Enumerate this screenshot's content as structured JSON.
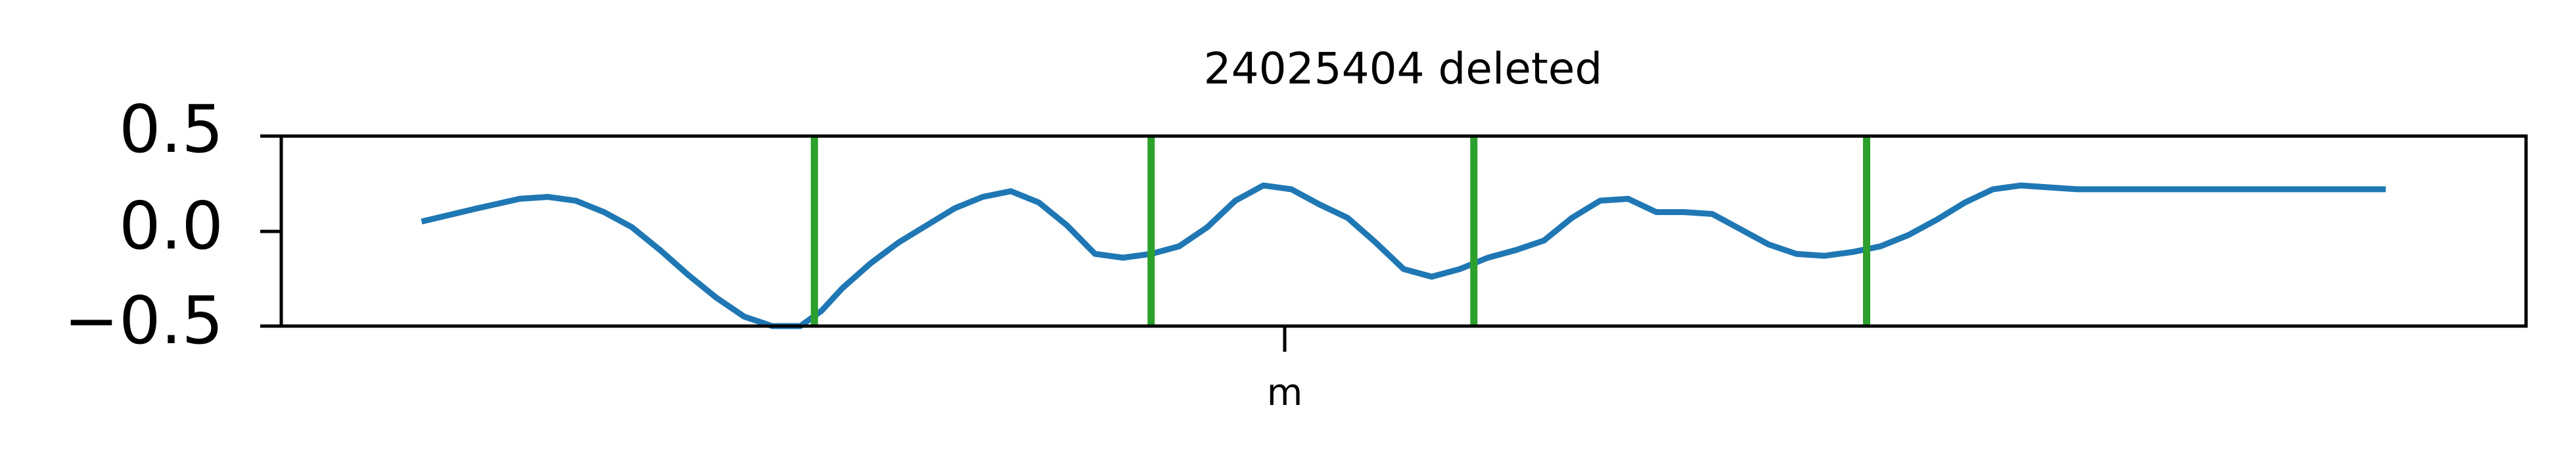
{
  "chart_data": {
    "type": "line",
    "title": "24025404 deleted",
    "xlabel": "",
    "ylabel": "",
    "ylim": [
      -0.5,
      0.5
    ],
    "grid": false,
    "x_tick_labels": [
      "m"
    ],
    "y_tick_labels": [
      "0.5",
      "0.0",
      "−0.5"
    ],
    "y_ticks": [
      0.5,
      0.0,
      -0.5
    ],
    "series": [
      {
        "color": "#1f77b4",
        "x": [
          0.1,
          0.14,
          0.17,
          0.19,
          0.21,
          0.23,
          0.25,
          0.27,
          0.29,
          0.31,
          0.33,
          0.35,
          0.37,
          0.385,
          0.4,
          0.42,
          0.44,
          0.46,
          0.48,
          0.5,
          0.52,
          0.54,
          0.56,
          0.58,
          0.6,
          0.62,
          0.64,
          0.66,
          0.68,
          0.7,
          0.72,
          0.74,
          0.76,
          0.78,
          0.8,
          0.82,
          0.84,
          0.86,
          0.88,
          0.9,
          0.92,
          0.94,
          0.96,
          0.98,
          1.0,
          1.02,
          1.04,
          1.06,
          1.08,
          1.1,
          1.12,
          1.14,
          1.16,
          1.18,
          1.2,
          1.22,
          1.24,
          1.26,
          1.28,
          1.3,
          1.32,
          1.34,
          1.36,
          1.38,
          1.4,
          1.42,
          1.44,
          1.46,
          1.48,
          1.5
        ],
        "y": [
          0.05,
          0.12,
          0.17,
          0.18,
          0.16,
          0.1,
          0.02,
          -0.1,
          -0.23,
          -0.35,
          -0.45,
          -0.5,
          -0.5,
          -0.42,
          -0.3,
          -0.17,
          -0.06,
          0.03,
          0.12,
          0.18,
          0.21,
          0.15,
          0.03,
          -0.12,
          -0.14,
          -0.12,
          -0.08,
          0.02,
          0.16,
          0.24,
          0.22,
          0.14,
          0.07,
          -0.06,
          -0.2,
          -0.24,
          -0.2,
          -0.14,
          -0.1,
          -0.05,
          0.07,
          0.16,
          0.17,
          0.1,
          0.1,
          0.09,
          0.01,
          -0.07,
          -0.12,
          -0.13,
          -0.11,
          -0.08,
          -0.02,
          0.06,
          0.15,
          0.22,
          0.24,
          0.23,
          0.22,
          0.22,
          0.22,
          0.22,
          0.22,
          0.22,
          0.22,
          0.22,
          0.22,
          0.22,
          0.22,
          0.22
        ]
      }
    ],
    "vertical_markers": {
      "color": "#2ca02c",
      "x": [
        0.38,
        0.62,
        0.85,
        1.13
      ]
    }
  }
}
